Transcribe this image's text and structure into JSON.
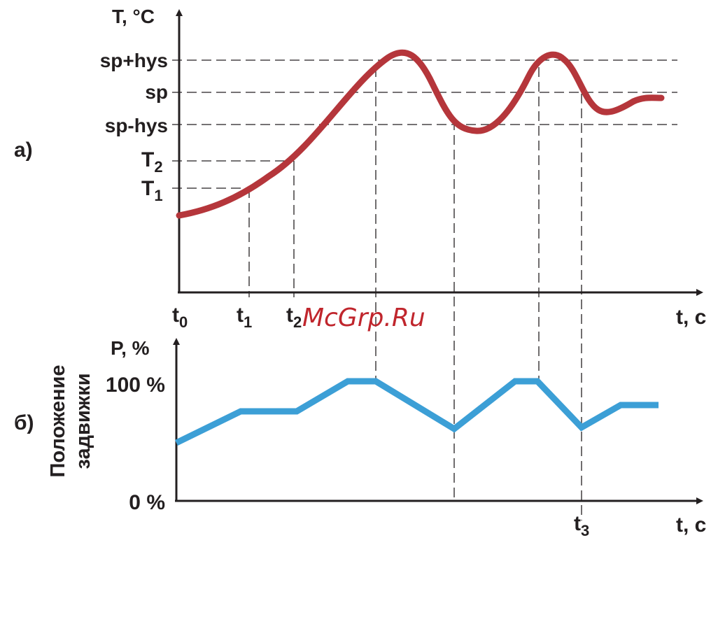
{
  "panel_a": {
    "tag": "а)",
    "y_axis_label": "T, °C",
    "x_axis_label": "t, c",
    "levels": {
      "sp_plus_hys": "sp+hys",
      "sp": "sp",
      "sp_minus_hys": "sp-hys",
      "T2": "T",
      "T2_sub": "2",
      "T1": "T",
      "T1_sub": "1"
    },
    "time_marks": [
      {
        "base": "t",
        "sub": "0"
      },
      {
        "base": "t",
        "sub": "1"
      },
      {
        "base": "t",
        "sub": "2"
      }
    ],
    "curve_color": "#b5363b"
  },
  "panel_b": {
    "tag": "б)",
    "y_axis_label": "P, %",
    "x_axis_label": "t, c",
    "y_title_line1": "Положение",
    "y_title_line2": "задвижки",
    "max_label": "100 %",
    "min_label": "0 %",
    "time_mark": {
      "base": "t",
      "sub": "3"
    },
    "curve_color": "#3c9fd6"
  },
  "watermark": "McGrp.Ru"
}
